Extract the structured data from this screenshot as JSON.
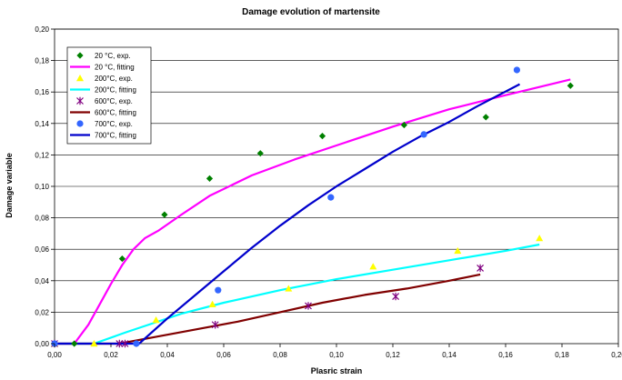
{
  "chart_data": {
    "type": "scatter",
    "title": "Damage evolution of martensite",
    "xlabel": "Plasric strain",
    "ylabel": "Damage variable",
    "xlim": [
      0,
      0.2
    ],
    "ylim": [
      0,
      0.2
    ],
    "x_ticks": [
      0,
      0.02,
      0.04,
      0.06,
      0.08,
      0.1,
      0.12,
      0.14,
      0.16,
      0.18,
      0.2
    ],
    "y_ticks": [
      0,
      0.02,
      0.04,
      0.06,
      0.08,
      0.1,
      0.12,
      0.14,
      0.16,
      0.18,
      0.2
    ],
    "x_tick_labels": [
      "0,00",
      "0,02",
      "0,04",
      "0,06",
      "0,08",
      "0,10",
      "0,12",
      "0,14",
      "0,16",
      "0,18",
      "0,20"
    ],
    "y_tick_labels": [
      "0,00",
      "0,02",
      "0,04",
      "0,06",
      "0,08",
      "0,10",
      "0,12",
      "0,14",
      "0,16",
      "0,18",
      "0,20"
    ],
    "grid": "horizontal",
    "legend_position": "top-left",
    "series": [
      {
        "name": "20 °C, exp.",
        "kind": "marker",
        "marker": "diamond",
        "color": "#008000",
        "x": [
          0.0,
          0.007,
          0.024,
          0.039,
          0.055,
          0.073,
          0.095,
          0.124,
          0.153,
          0.183
        ],
        "y": [
          0.0,
          0.0,
          0.054,
          0.082,
          0.105,
          0.121,
          0.132,
          0.139,
          0.144,
          0.164
        ]
      },
      {
        "name": "20 °C, fitting",
        "kind": "line",
        "color": "#ff00ff",
        "x": [
          0.0,
          0.007,
          0.012,
          0.016,
          0.02,
          0.024,
          0.028,
          0.032,
          0.037,
          0.045,
          0.055,
          0.07,
          0.085,
          0.1,
          0.12,
          0.14,
          0.16,
          0.183
        ],
        "y": [
          0.0,
          0.0,
          0.012,
          0.025,
          0.038,
          0.05,
          0.06,
          0.067,
          0.072,
          0.082,
          0.094,
          0.107,
          0.117,
          0.126,
          0.138,
          0.149,
          0.158,
          0.168
        ]
      },
      {
        "name": "200°C, exp.",
        "kind": "marker",
        "marker": "triangle",
        "color": "#ffff00",
        "x": [
          0.0,
          0.014,
          0.036,
          0.056,
          0.083,
          0.113,
          0.143,
          0.172
        ],
        "y": [
          0.0,
          0.0,
          0.015,
          0.025,
          0.035,
          0.049,
          0.059,
          0.067
        ]
      },
      {
        "name": "200°C, fitting",
        "kind": "line",
        "color": "#00ffff",
        "x": [
          0.0,
          0.014,
          0.025,
          0.035,
          0.045,
          0.06,
          0.08,
          0.1,
          0.12,
          0.14,
          0.16,
          0.172
        ],
        "y": [
          0.0,
          0.0,
          0.007,
          0.013,
          0.019,
          0.026,
          0.034,
          0.041,
          0.047,
          0.053,
          0.059,
          0.063
        ]
      },
      {
        "name": "600°C, exp.",
        "kind": "marker",
        "marker": "star",
        "color": "#800080",
        "x": [
          0.0,
          0.023,
          0.025,
          0.057,
          0.09,
          0.121,
          0.151
        ],
        "y": [
          0.0,
          0.0,
          0.0,
          0.012,
          0.024,
          0.03,
          0.048
        ]
      },
      {
        "name": "600°C, fitting",
        "kind": "line",
        "color": "#800000",
        "x": [
          0.0,
          0.023,
          0.035,
          0.05,
          0.065,
          0.08,
          0.095,
          0.11,
          0.125,
          0.14,
          0.151
        ],
        "y": [
          0.0,
          0.0,
          0.004,
          0.009,
          0.014,
          0.02,
          0.026,
          0.031,
          0.035,
          0.04,
          0.044
        ]
      },
      {
        "name": "700°C, exp.",
        "kind": "marker",
        "marker": "circle",
        "color": "#3366ff",
        "x": [
          0.0,
          0.029,
          0.058,
          0.098,
          0.131,
          0.164
        ],
        "y": [
          0.0,
          0.0,
          0.034,
          0.093,
          0.133,
          0.174
        ]
      },
      {
        "name": "700°C, fitting",
        "kind": "line",
        "color": "#0000cc",
        "x": [
          0.0,
          0.03,
          0.04,
          0.05,
          0.06,
          0.07,
          0.08,
          0.09,
          0.1,
          0.11,
          0.12,
          0.13,
          0.14,
          0.15,
          0.165
        ],
        "y": [
          0.0,
          0.0,
          0.016,
          0.031,
          0.046,
          0.061,
          0.075,
          0.088,
          0.1,
          0.111,
          0.122,
          0.132,
          0.141,
          0.151,
          0.165
        ]
      }
    ]
  }
}
